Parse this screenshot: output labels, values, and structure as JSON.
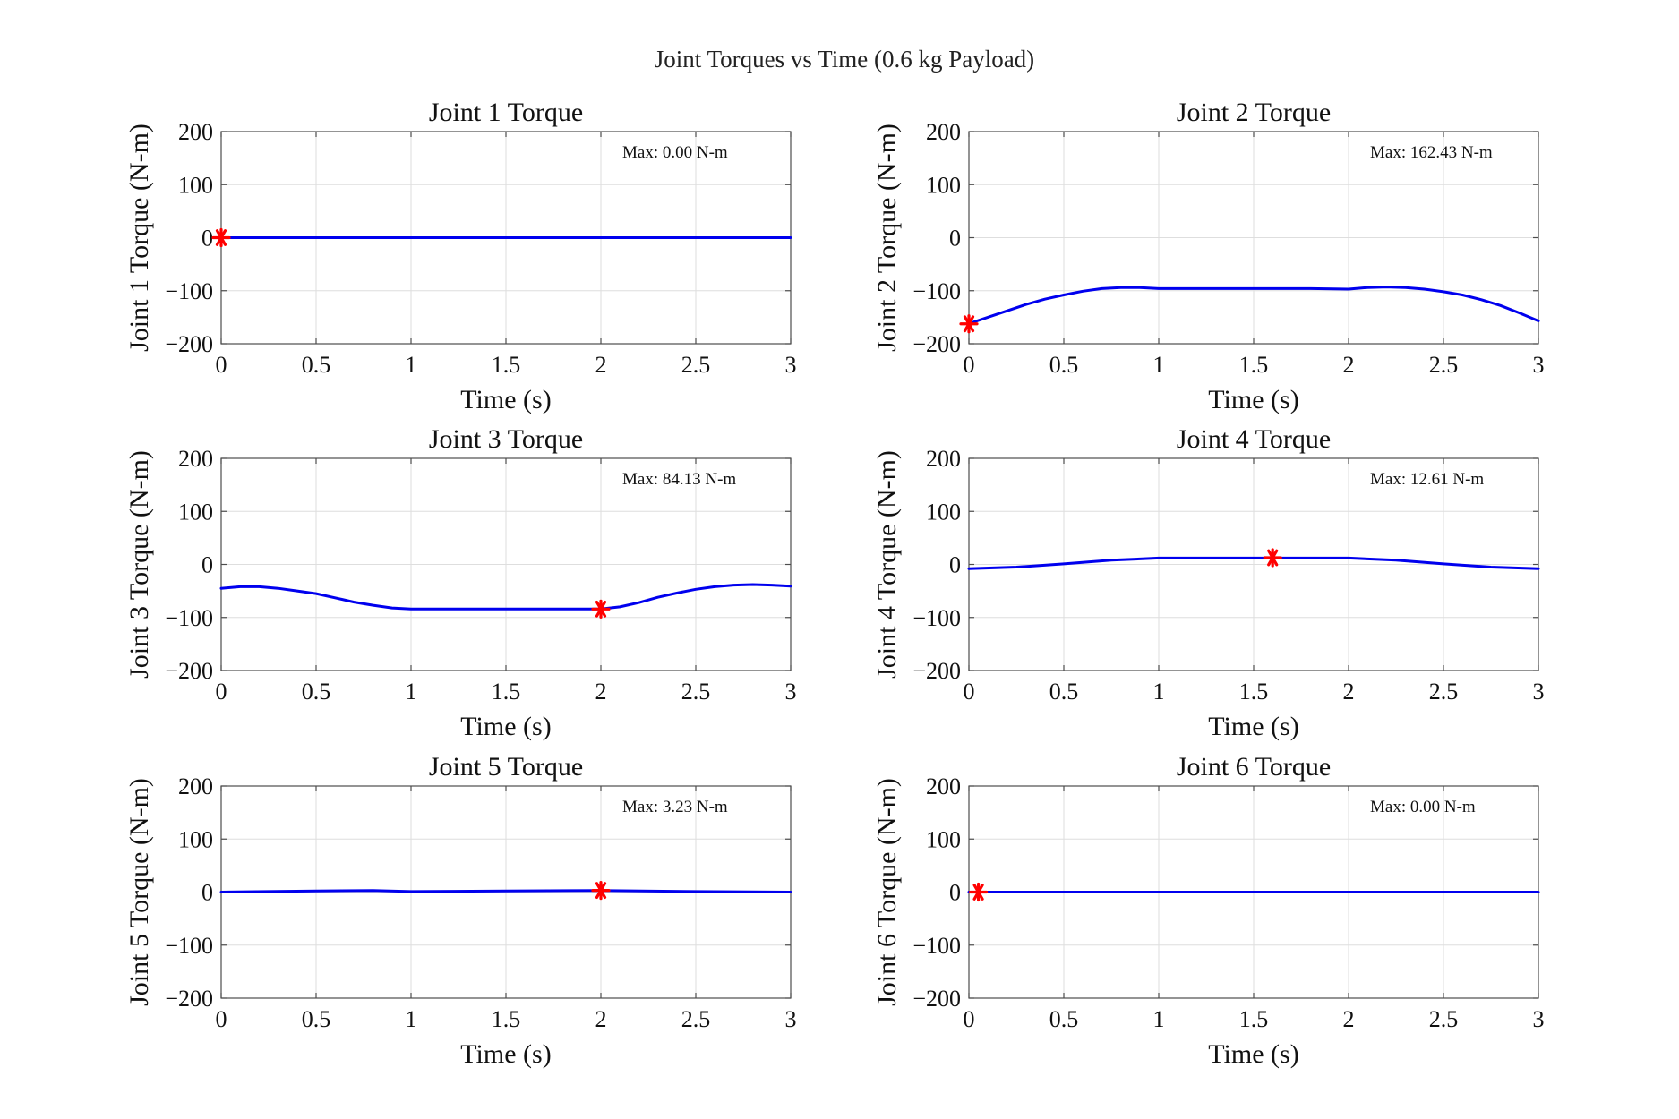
{
  "figure": {
    "title": "Joint Torques vs Time (0.6 kg Payload)"
  },
  "colors": {
    "line": "#0000ee",
    "marker": "#ff0000",
    "axes": "#4d4d4d",
    "grid": "#dedede"
  },
  "chart_data": [
    {
      "type": "line",
      "title": "Joint 1 Torque",
      "xlabel": "Time (s)",
      "ylabel": "Joint 1 Torque (N-m)",
      "xlim": [
        0,
        3
      ],
      "ylim": [
        -200,
        200
      ],
      "xticks": [
        0,
        0.5,
        1,
        1.5,
        2,
        2.5,
        3
      ],
      "yticks": [
        200,
        100,
        0,
        -100,
        -200
      ],
      "grid": true,
      "annotation": "Max: 0.00 N-m",
      "max_point": {
        "x": 0.0,
        "y": 0.0
      },
      "series": [
        {
          "x": [
            0,
            3
          ],
          "y": [
            0,
            0
          ]
        }
      ]
    },
    {
      "type": "line",
      "title": "Joint 2 Torque",
      "xlabel": "Time (s)",
      "ylabel": "Joint 2 Torque (N-m)",
      "xlim": [
        0,
        3
      ],
      "ylim": [
        -200,
        200
      ],
      "xticks": [
        0,
        0.5,
        1,
        1.5,
        2,
        2.5,
        3
      ],
      "yticks": [
        200,
        100,
        0,
        -100,
        -200
      ],
      "grid": true,
      "annotation": "Max: 162.43 N-m",
      "max_point": {
        "x": 0.0,
        "y": -162.4
      },
      "series": [
        {
          "x": [
            0,
            0.1,
            0.2,
            0.3,
            0.4,
            0.5,
            0.6,
            0.7,
            0.8,
            0.9,
            1.0,
            1.2,
            1.5,
            1.8,
            2.0,
            2.1,
            2.2,
            2.3,
            2.4,
            2.5,
            2.6,
            2.7,
            2.8,
            2.9,
            3.0
          ],
          "y": [
            -162,
            -150,
            -138,
            -126,
            -116,
            -108,
            -101,
            -96,
            -94,
            -94,
            -96,
            -96,
            -96,
            -96,
            -97,
            -94,
            -93,
            -94,
            -97,
            -102,
            -108,
            -117,
            -128,
            -142,
            -157
          ]
        }
      ]
    },
    {
      "type": "line",
      "title": "Joint 3 Torque",
      "xlabel": "Time (s)",
      "ylabel": "Joint 3 Torque (N-m)",
      "xlim": [
        0,
        3
      ],
      "ylim": [
        -200,
        200
      ],
      "xticks": [
        0,
        0.5,
        1,
        1.5,
        2,
        2.5,
        3
      ],
      "yticks": [
        200,
        100,
        0,
        -100,
        -200
      ],
      "grid": true,
      "annotation": "Max: 84.13 N-m",
      "max_point": {
        "x": 2.0,
        "y": -84.1
      },
      "series": [
        {
          "x": [
            0,
            0.1,
            0.2,
            0.3,
            0.4,
            0.5,
            0.6,
            0.7,
            0.8,
            0.9,
            1.0,
            1.5,
            2.0,
            2.1,
            2.2,
            2.3,
            2.4,
            2.5,
            2.6,
            2.7,
            2.8,
            2.9,
            3.0
          ],
          "y": [
            -45,
            -42,
            -42,
            -45,
            -50,
            -55,
            -63,
            -71,
            -77,
            -82,
            -84,
            -84,
            -84,
            -80,
            -72,
            -62,
            -54,
            -47,
            -42,
            -39,
            -38,
            -39,
            -41
          ]
        }
      ]
    },
    {
      "type": "line",
      "title": "Joint 4 Torque",
      "xlabel": "Time (s)",
      "ylabel": "Joint 4 Torque (N-m)",
      "xlim": [
        0,
        3
      ],
      "ylim": [
        -200,
        200
      ],
      "xticks": [
        0,
        0.5,
        1,
        1.5,
        2,
        2.5,
        3
      ],
      "yticks": [
        200,
        100,
        0,
        -100,
        -200
      ],
      "grid": true,
      "annotation": "Max: 12.61 N-m",
      "max_point": {
        "x": 1.6,
        "y": 12.6
      },
      "series": [
        {
          "x": [
            0,
            0.25,
            0.5,
            0.75,
            1.0,
            1.5,
            2.0,
            2.25,
            2.5,
            2.75,
            3.0
          ],
          "y": [
            -8,
            -5,
            1,
            8,
            12,
            12,
            12,
            8,
            1,
            -5,
            -8
          ]
        }
      ]
    },
    {
      "type": "line",
      "title": "Joint 5 Torque",
      "xlabel": "Time (s)",
      "ylabel": "Joint 5 Torque (N-m)",
      "xlim": [
        0,
        3
      ],
      "ylim": [
        -200,
        200
      ],
      "xticks": [
        0,
        0.5,
        1,
        1.5,
        2,
        2.5,
        3
      ],
      "yticks": [
        200,
        100,
        0,
        -100,
        -200
      ],
      "grid": true,
      "annotation": "Max: 3.23 N-m",
      "max_point": {
        "x": 2.0,
        "y": 3.2
      },
      "series": [
        {
          "x": [
            0,
            0.5,
            0.8,
            1.0,
            1.5,
            2.0,
            2.5,
            3.0
          ],
          "y": [
            0,
            2,
            3,
            1,
            2,
            3,
            1,
            0
          ]
        }
      ]
    },
    {
      "type": "line",
      "title": "Joint 6 Torque",
      "xlabel": "Time (s)",
      "ylabel": "Joint 6 Torque (N-m)",
      "xlim": [
        0,
        3
      ],
      "ylim": [
        -200,
        200
      ],
      "xticks": [
        0,
        0.5,
        1,
        1.5,
        2,
        2.5,
        3
      ],
      "yticks": [
        200,
        100,
        0,
        -100,
        -200
      ],
      "grid": true,
      "annotation": "Max: 0.00 N-m",
      "max_point": {
        "x": 0.05,
        "y": 0.0
      },
      "series": [
        {
          "x": [
            0,
            3
          ],
          "y": [
            0,
            0
          ]
        }
      ]
    }
  ]
}
